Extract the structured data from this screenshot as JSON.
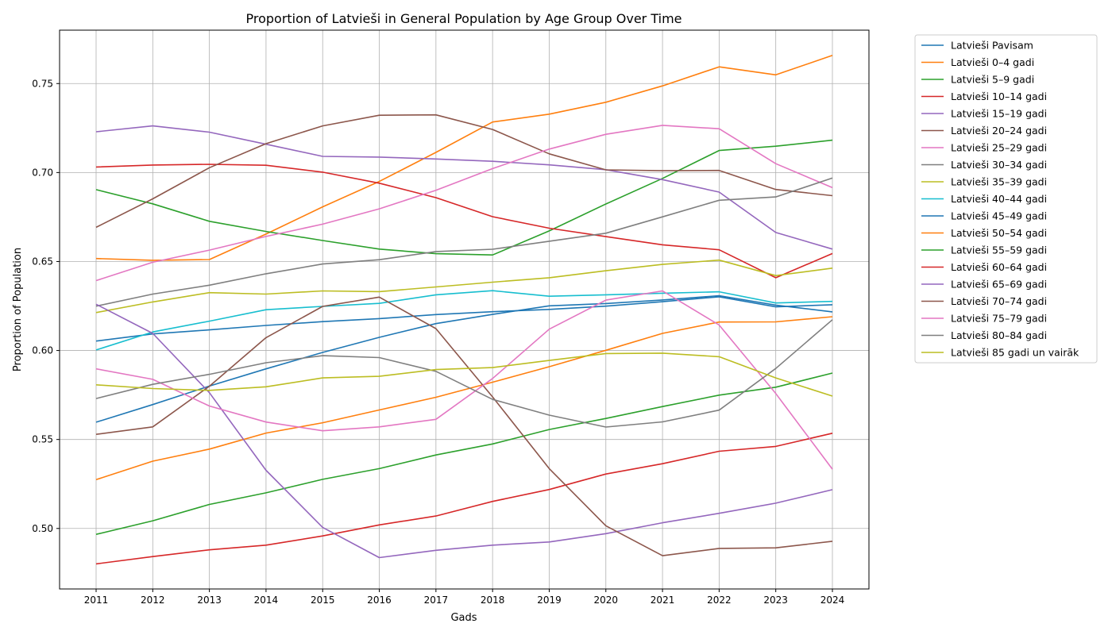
{
  "chart_data": {
    "type": "line",
    "title": "Proportion of Latvieši in General Population by Age Group Over Time",
    "xlabel": "Gads",
    "ylabel": "Proportion of Population",
    "x": [
      2011,
      2012,
      2013,
      2014,
      2015,
      2016,
      2017,
      2018,
      2019,
      2020,
      2021,
      2022,
      2023,
      2024
    ],
    "ylim": [
      0.466,
      0.78
    ],
    "yticks": [
      "0.50",
      "0.55",
      "0.60",
      "0.65",
      "0.70",
      "0.75"
    ],
    "grid": true,
    "legend_position": "outside-right",
    "series": [
      {
        "name": "Latvieši Pavisam",
        "color": "#1f77b4",
        "values": [
          0.6053,
          0.6093,
          0.6116,
          0.6141,
          0.6162,
          0.6179,
          0.6202,
          0.6218,
          0.6231,
          0.6249,
          0.6274,
          0.6302,
          0.6245,
          0.6257
        ]
      },
      {
        "name": "Latvieši 0–4 gadi",
        "color": "#ff7f0e",
        "values": [
          0.6517,
          0.6507,
          0.6511,
          0.6654,
          0.6807,
          0.695,
          0.7113,
          0.7284,
          0.7328,
          0.7395,
          0.7487,
          0.7594,
          0.7549,
          0.7658
        ]
      },
      {
        "name": "Latvieši 5–9 gadi",
        "color": "#2ca02c",
        "values": [
          0.6904,
          0.6824,
          0.6726,
          0.6669,
          0.6618,
          0.657,
          0.6544,
          0.6537,
          0.6672,
          0.6823,
          0.6967,
          0.7124,
          0.7148,
          0.7182
        ]
      },
      {
        "name": "Latvieši 10–14 gadi",
        "color": "#d62728",
        "values": [
          0.7031,
          0.7042,
          0.7046,
          0.7041,
          0.7002,
          0.694,
          0.6859,
          0.6752,
          0.6687,
          0.664,
          0.6594,
          0.6566,
          0.6409,
          0.6545
        ]
      },
      {
        "name": "Latvieši 15–19 gadi",
        "color": "#9467bd",
        "values": [
          0.7229,
          0.7262,
          0.7227,
          0.7159,
          0.7091,
          0.7087,
          0.7076,
          0.7063,
          0.7043,
          0.7016,
          0.696,
          0.689,
          0.6663,
          0.657
        ]
      },
      {
        "name": "Latvieši 20–24 gadi",
        "color": "#8c564b",
        "values": [
          0.6692,
          0.6852,
          0.7027,
          0.7162,
          0.7262,
          0.7322,
          0.7324,
          0.7242,
          0.7105,
          0.7015,
          0.701,
          0.7012,
          0.6905,
          0.687
        ]
      },
      {
        "name": "Latvieši 25–29 gadi",
        "color": "#e377c2",
        "values": [
          0.6393,
          0.6496,
          0.6564,
          0.6641,
          0.671,
          0.6796,
          0.69,
          0.7022,
          0.7132,
          0.7215,
          0.7265,
          0.7246,
          0.705,
          0.6915
        ]
      },
      {
        "name": "Latvieši 30–34 gadi",
        "color": "#7f7f7f",
        "values": [
          0.6249,
          0.6317,
          0.6367,
          0.6431,
          0.6486,
          0.651,
          0.6556,
          0.6569,
          0.6614,
          0.6659,
          0.6751,
          0.6844,
          0.6863,
          0.6969
        ]
      },
      {
        "name": "Latvieši 35–39 gadi",
        "color": "#bcbd22",
        "values": [
          0.6213,
          0.6273,
          0.6325,
          0.6317,
          0.6335,
          0.6331,
          0.6357,
          0.6384,
          0.6409,
          0.6448,
          0.6484,
          0.6508,
          0.6421,
          0.6463
        ]
      },
      {
        "name": "Latvieši 40–44 gadi",
        "color": "#17becf",
        "values": [
          0.6003,
          0.6104,
          0.6165,
          0.6229,
          0.6248,
          0.6265,
          0.6313,
          0.6336,
          0.6305,
          0.6313,
          0.6322,
          0.633,
          0.6267,
          0.6276
        ]
      },
      {
        "name": "Latvieši 45–49 gadi",
        "color": "#1f77b4",
        "values": [
          0.5597,
          0.5696,
          0.58,
          0.5897,
          0.5989,
          0.6074,
          0.6151,
          0.6203,
          0.6251,
          0.6264,
          0.6284,
          0.6308,
          0.6255,
          0.6217
        ]
      },
      {
        "name": "Latvieši 50–54 gadi",
        "color": "#ff7f0e",
        "values": [
          0.5274,
          0.5378,
          0.5446,
          0.5536,
          0.5594,
          0.5666,
          0.5737,
          0.5822,
          0.5909,
          0.6001,
          0.6096,
          0.616,
          0.6161,
          0.619
        ]
      },
      {
        "name": "Latvieši 55–59 gadi",
        "color": "#2ca02c",
        "values": [
          0.4967,
          0.5043,
          0.5135,
          0.52,
          0.5276,
          0.5336,
          0.5413,
          0.5475,
          0.5556,
          0.5618,
          0.5685,
          0.5749,
          0.5794,
          0.5873
        ]
      },
      {
        "name": "Latvieši 60–64 gadi",
        "color": "#d62728",
        "values": [
          0.4801,
          0.4842,
          0.488,
          0.4906,
          0.4958,
          0.502,
          0.507,
          0.5152,
          0.5219,
          0.5306,
          0.5364,
          0.5434,
          0.5461,
          0.5535
        ]
      },
      {
        "name": "Latvieši 65–69 gadi",
        "color": "#9467bd",
        "values": [
          0.626,
          0.6096,
          0.5763,
          0.5327,
          0.5006,
          0.4836,
          0.4877,
          0.4906,
          0.4924,
          0.4971,
          0.5032,
          0.5085,
          0.5142,
          0.5218
        ]
      },
      {
        "name": "Latvieši 70–74 gadi",
        "color": "#8c564b",
        "values": [
          0.5529,
          0.5571,
          0.5799,
          0.6072,
          0.6248,
          0.63,
          0.6123,
          0.5739,
          0.5336,
          0.5015,
          0.4847,
          0.4888,
          0.4891,
          0.4928
        ]
      },
      {
        "name": "Latvieši 75–79 gadi",
        "color": "#e377c2",
        "values": [
          0.5897,
          0.5838,
          0.5688,
          0.5598,
          0.5549,
          0.5571,
          0.5613,
          0.5843,
          0.612,
          0.6283,
          0.6335,
          0.6143,
          0.5758,
          0.5333
        ]
      },
      {
        "name": "Latvieši 80–84 gadi",
        "color": "#7f7f7f",
        "values": [
          0.573,
          0.581,
          0.5866,
          0.5931,
          0.5971,
          0.596,
          0.5883,
          0.5725,
          0.5637,
          0.557,
          0.5599,
          0.5665,
          0.5899,
          0.6173
        ]
      },
      {
        "name": "Latvieši 85 gadi un vairāk",
        "color": "#bcbd22",
        "values": [
          0.5807,
          0.5786,
          0.5776,
          0.5796,
          0.5846,
          0.5855,
          0.5893,
          0.5904,
          0.5944,
          0.5983,
          0.5985,
          0.5965,
          0.5846,
          0.5744
        ]
      }
    ]
  }
}
